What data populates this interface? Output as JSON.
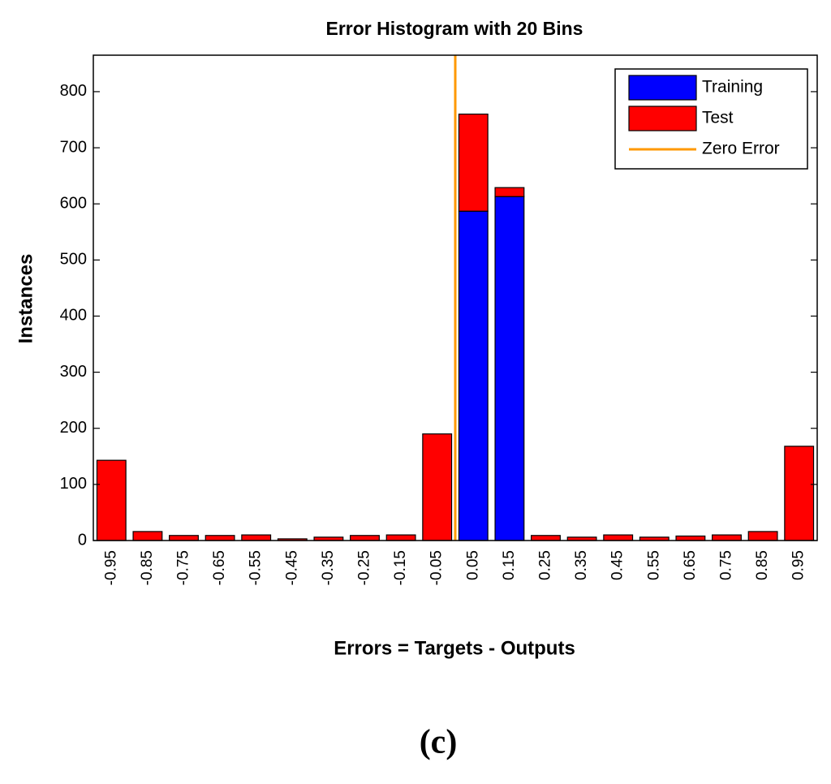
{
  "chart_data": {
    "type": "stacked_histogram",
    "title": "Error Histogram with 20 Bins",
    "x_label": "Errors = Targets - Outputs",
    "y_label": "Instances",
    "x": [
      -0.95,
      -0.85,
      -0.75,
      -0.65,
      -0.55,
      -0.45,
      -0.35,
      -0.25,
      -0.15,
      -0.05,
      0.05,
      0.15,
      0.25,
      0.35,
      0.45,
      0.55,
      0.65,
      0.75,
      0.85,
      0.95
    ],
    "series": [
      {
        "name": "Training",
        "color": "#0000ff",
        "values": [
          0,
          0,
          0,
          0,
          0,
          0,
          0,
          0,
          0,
          0,
          587,
          613,
          0,
          0,
          0,
          0,
          0,
          0,
          0,
          0
        ]
      },
      {
        "name": "Test",
        "color": "#ff0000",
        "values": [
          143,
          16,
          9,
          9,
          10,
          3,
          6,
          9,
          10,
          190,
          173,
          16,
          9,
          6,
          10,
          6,
          8,
          10,
          16,
          168
        ]
      }
    ],
    "reference_line": {
      "name": "Zero Error",
      "x": 0,
      "color": "#ff9900"
    },
    "xlim": [
      -1,
      1
    ],
    "ylim": [
      0,
      865
    ],
    "yticks": [
      0,
      100,
      200,
      300,
      400,
      500,
      600,
      700,
      800
    ],
    "legend": "top-right"
  },
  "caption": "(c)"
}
